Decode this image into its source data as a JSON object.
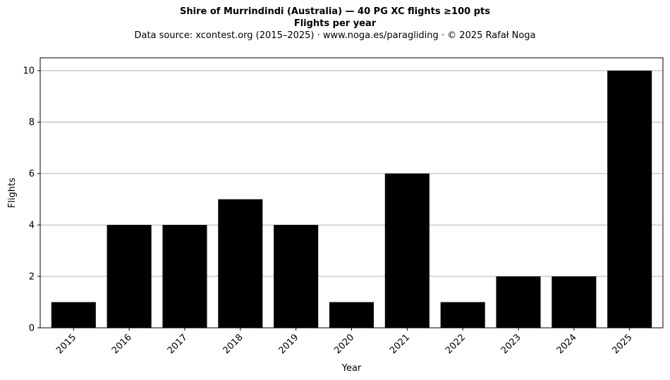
{
  "chart_data": {
    "type": "bar",
    "title": "Shire of Murrindindi (Australia)  —  40 PG XC flights ≥100 pts",
    "subtitle": "Flights per year",
    "source_line": "Data source: xcontest.org (2015–2025)  ·  www.noga.es/paragliding  ·  © 2025 Rafał Noga",
    "xlabel": "Year",
    "ylabel": "Flights",
    "categories": [
      "2015",
      "2016",
      "2017",
      "2018",
      "2019",
      "2020",
      "2021",
      "2022",
      "2023",
      "2024",
      "2025"
    ],
    "values": [
      1,
      4,
      4,
      5,
      4,
      1,
      6,
      1,
      2,
      2,
      10
    ],
    "ylim": [
      0,
      10.5
    ],
    "yticks": [
      "0",
      "2",
      "4",
      "6",
      "8",
      "10"
    ],
    "grid": "horizontal",
    "bar_color": "#000000",
    "grid_color": "#b0b0b0"
  }
}
